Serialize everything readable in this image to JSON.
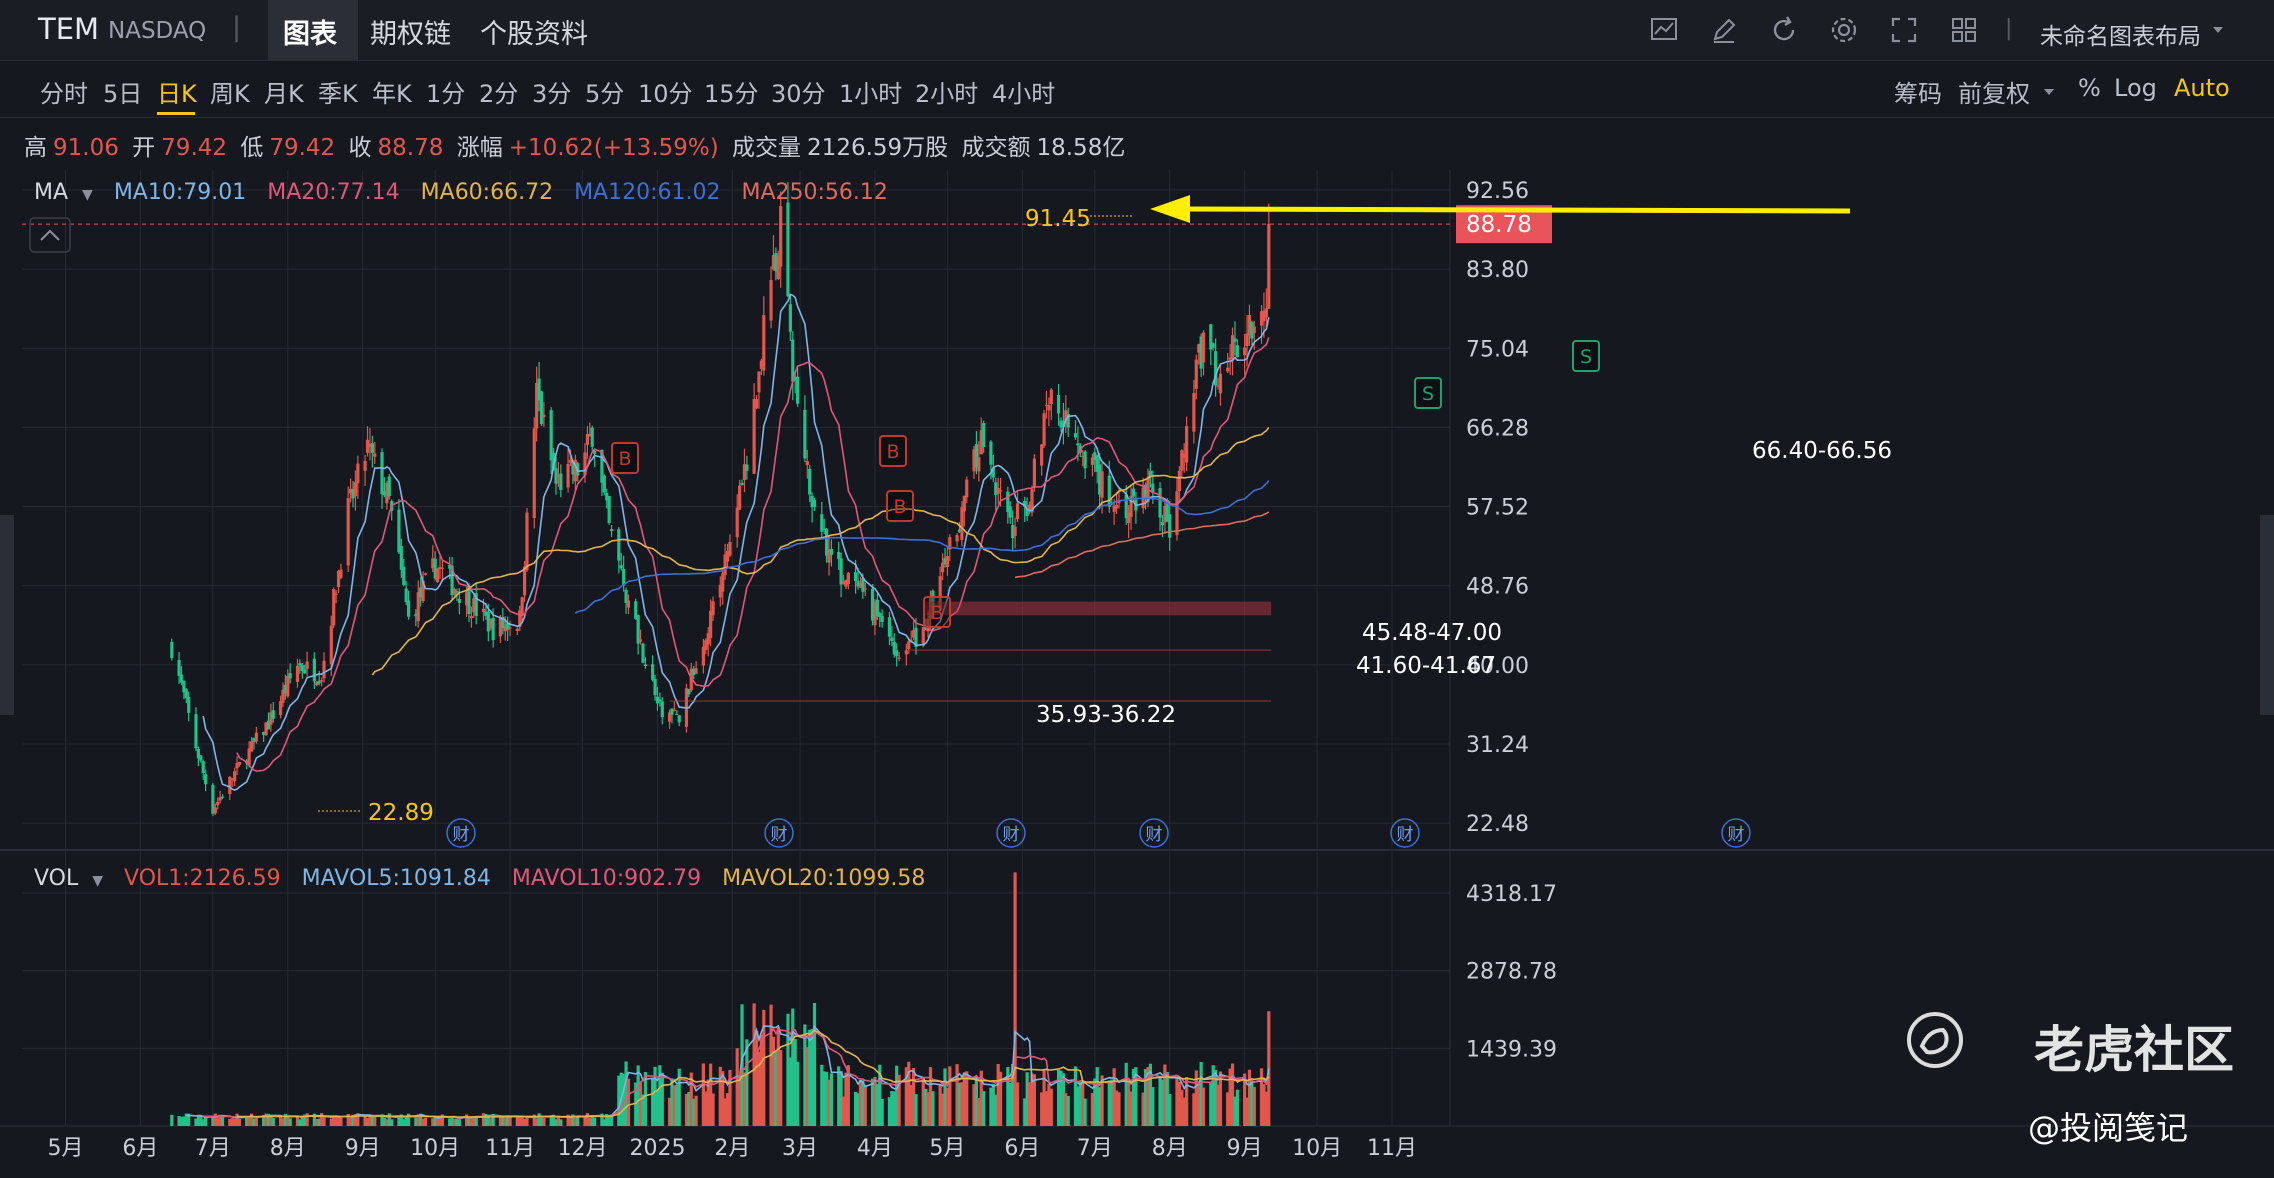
{
  "topbar": {
    "symbol": "TEM",
    "exchange": "NASDAQ",
    "separator": "|",
    "tabs": [
      "图表",
      "期权链",
      "个股资料"
    ],
    "layout_name": "未命名图表布局"
  },
  "periods": [
    "分时",
    "5日",
    "日K",
    "周K",
    "月K",
    "季K",
    "年K",
    "1分",
    "2分",
    "3分",
    "5分",
    "10分",
    "15分",
    "30分",
    "1小时",
    "2小时",
    "4小时"
  ],
  "active_period": "日K",
  "right_controls": {
    "chips": "筹码",
    "adjust": "前复权",
    "percent": "%",
    "log": "Log",
    "auto": "Auto"
  },
  "ohlc": {
    "high_label": "高",
    "high": "91.06",
    "open_label": "开",
    "open": "79.42",
    "low_label": "低",
    "low": "79.42",
    "close_label": "收",
    "close": "88.78",
    "change_label": "涨幅",
    "change": "+10.62(+13.59%)",
    "volume_label": "成交量",
    "volume": "2126.59万股",
    "amount_label": "成交额",
    "amount": "18.58亿"
  },
  "ma_legend": {
    "name": "MA",
    "ma10": "MA10:79.01",
    "ma20": "MA20:77.14",
    "ma60": "MA60:66.72",
    "ma120": "MA120:61.02",
    "ma250": "MA250:56.12"
  },
  "vol_legend": {
    "name": "VOL",
    "vol1": "VOL1:2126.59",
    "mavol5": "MAVOL5:1091.84",
    "mavol10": "MAVOL10:902.79",
    "mavol20": "MAVOL20:1099.58"
  },
  "colors": {
    "up": "#e2574c",
    "down": "#22c18a",
    "ma10": "#7fb6e8",
    "ma20": "#e0577a",
    "ma60": "#e3b54a",
    "ma120": "#3d6fd6",
    "ma250": "#e26a5a",
    "arrow": "#ffee00",
    "price_tag": "#e9535a"
  },
  "chart_data": {
    "type": "candlestick",
    "symbol": "TEM",
    "price_axis": {
      "ticks": [
        92.56,
        83.8,
        75.04,
        66.28,
        57.52,
        48.76,
        40.0,
        31.24,
        22.48
      ],
      "range": [
        19.5,
        95.0
      ]
    },
    "volume_axis": {
      "ticks": [
        "4318.17",
        "2878.78",
        "1439.39"
      ],
      "unit": "万股",
      "range": [
        0,
        5300
      ]
    },
    "x_ticks": [
      "5月",
      "6月",
      "7月",
      "8月",
      "9月",
      "10月",
      "11月",
      "12月",
      "2025",
      "2月",
      "3月",
      "4月",
      "5月",
      "6月",
      "7月",
      "8月",
      "9月",
      "10月",
      "11月"
    ],
    "last_price": 88.78,
    "price_annotations": [
      "91.45",
      "22.89",
      "35.93-36.22",
      "45.48-47.00",
      "41.60-41.67",
      "66.40-66.56"
    ],
    "signal_markers": [
      {
        "label": "B",
        "date": "2024-09"
      },
      {
        "label": "B",
        "date": "2024-12"
      },
      {
        "label": "B",
        "date": "2024-12"
      },
      {
        "label": "B",
        "date": "2024-12"
      },
      {
        "label": "S",
        "date": "2025-05"
      },
      {
        "label": "S",
        "date": "2025-06"
      }
    ],
    "earnings_marker_label": "财",
    "price_path": [
      [
        "2024-06-14",
        42
      ],
      [
        "2024-06-24",
        31
      ],
      [
        "2024-07-01",
        24
      ],
      [
        "2024-07-10",
        28
      ],
      [
        "2024-07-25",
        34
      ],
      [
        "2024-08-05",
        40
      ],
      [
        "2024-08-15",
        39
      ],
      [
        "2024-08-26",
        57
      ],
      [
        "2024-09-03",
        64
      ],
      [
        "2024-09-12",
        58
      ],
      [
        "2024-09-20",
        45
      ],
      [
        "2024-10-01",
        51
      ],
      [
        "2024-10-15",
        47
      ],
      [
        "2024-10-25",
        44
      ],
      [
        "2024-11-05",
        45
      ],
      [
        "2024-11-12",
        70
      ],
      [
        "2024-11-20",
        60
      ],
      [
        "2024-12-01",
        62
      ],
      [
        "2024-12-05",
        66
      ],
      [
        "2024-12-12",
        55
      ],
      [
        "2024-12-20",
        47
      ],
      [
        "2025-01-02",
        35
      ],
      [
        "2025-01-10",
        34
      ],
      [
        "2025-01-20",
        43
      ],
      [
        "2025-01-28",
        50
      ],
      [
        "2025-02-07",
        62
      ],
      [
        "2025-02-13",
        75
      ],
      [
        "2025-02-21",
        89
      ],
      [
        "2025-02-27",
        70
      ],
      [
        "2025-03-05",
        60
      ],
      [
        "2025-03-15",
        51
      ],
      [
        "2025-03-25",
        48
      ],
      [
        "2025-04-04",
        45
      ],
      [
        "2025-04-11",
        41
      ],
      [
        "2025-04-21",
        44
      ],
      [
        "2025-05-01",
        52
      ],
      [
        "2025-05-08",
        58
      ],
      [
        "2025-05-15",
        65
      ],
      [
        "2025-05-27",
        55
      ],
      [
        "2025-06-03",
        58
      ],
      [
        "2025-06-12",
        70
      ],
      [
        "2025-06-23",
        66
      ],
      [
        "2025-07-03",
        60
      ],
      [
        "2025-07-14",
        57
      ],
      [
        "2025-07-24",
        60
      ],
      [
        "2025-08-01",
        55
      ],
      [
        "2025-08-08",
        65
      ],
      [
        "2025-08-14",
        75
      ],
      [
        "2025-08-22",
        72
      ],
      [
        "2025-09-02",
        78
      ],
      [
        "2025-09-11",
        80
      ],
      [
        "2025-09-12",
        88.78
      ]
    ]
  }
}
